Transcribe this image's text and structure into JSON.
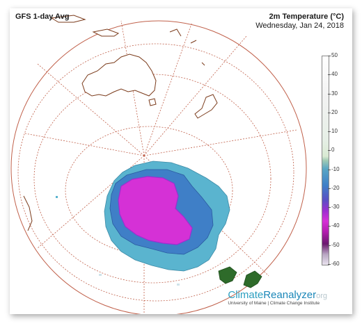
{
  "header": {
    "model_label": "GFS 1-day Avg",
    "variable_label": "2m Temperature (°C)",
    "date_label": "Wednesday, Jan 24, 2018"
  },
  "colorbar": {
    "ticks": [
      "50",
      "40",
      "30",
      "20",
      "10",
      "0",
      "-10",
      "-20",
      "-30",
      "-40",
      "-50",
      "-60"
    ]
  },
  "brand": {
    "name_part1": "Climate",
    "name_part2": "Reanalyzer",
    "name_suffix": "org",
    "subtitle": "University of Maine | Climate Change Institute"
  },
  "colors": {
    "graticule": "#c0604a",
    "coast": "#7a3a1a",
    "ice_cold": "#d531d6",
    "ice_mid": "#3f7fc7",
    "ice_warm": "#5ab4cf"
  }
}
